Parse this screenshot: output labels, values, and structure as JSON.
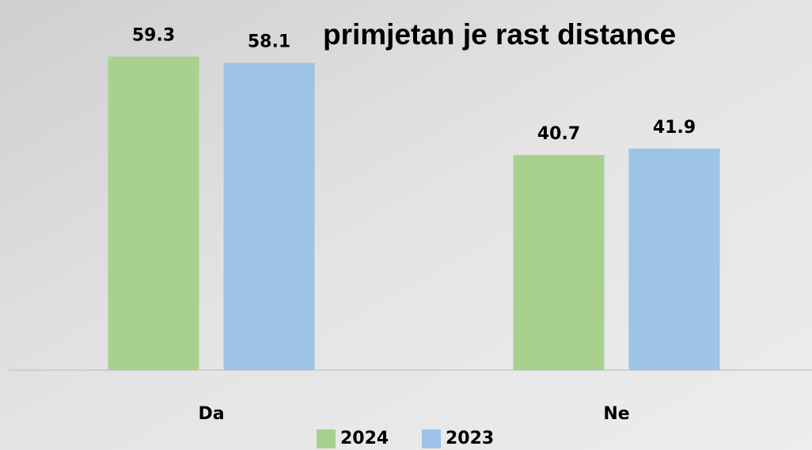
{
  "chart_data": {
    "type": "bar",
    "title": "primjetan je rast distance",
    "categories": [
      "Da",
      "Ne"
    ],
    "series": [
      {
        "name": "2024",
        "color": "#a9d18e",
        "values": [
          59.3,
          40.7
        ]
      },
      {
        "name": "2023",
        "color": "#9dc3e6",
        "values": [
          58.1,
          41.9
        ]
      }
    ],
    "ylim": [
      0,
      70
    ],
    "legend": "bottom"
  }
}
